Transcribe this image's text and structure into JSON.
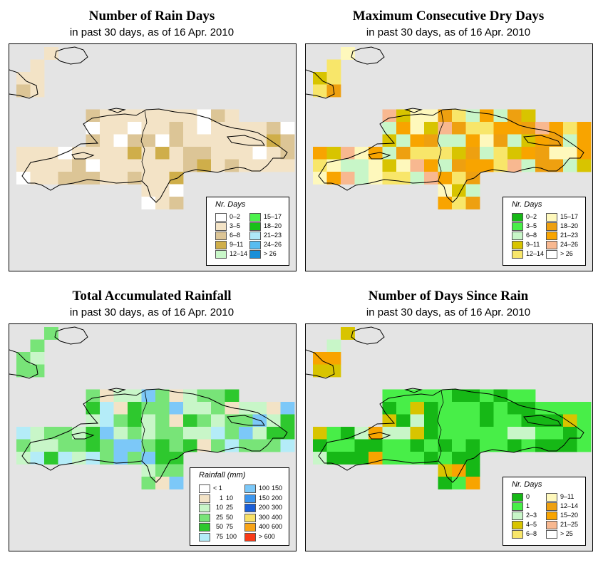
{
  "colors": {
    "background": "#e4e4e4",
    "coast": "#000000"
  },
  "panels": [
    {
      "id": "rain-days",
      "title": "Number of Rain Days",
      "subtitle": "in past 30 days, as of  16 Apr. 2010",
      "legend": {
        "title": "Nr. Days",
        "items": [
          {
            "label": "0–2",
            "color": "#ffffff"
          },
          {
            "label": "3–5",
            "color": "#f3e3c6"
          },
          {
            "label": "6–8",
            "color": "#dcc596"
          },
          {
            "label": "9–11",
            "color": "#cfae4a"
          },
          {
            "label": "12–14",
            "color": "#c9f7c9"
          },
          {
            "label": "15–17",
            "color": "#4cf24c"
          },
          {
            "label": "18–20",
            "color": "#18c018"
          },
          {
            "label": "21–23",
            "color": "#aee8f8"
          },
          {
            "label": "24–26",
            "color": "#58bcf0"
          },
          {
            "label": "> 26",
            "color": "#1a8fd8"
          }
        ]
      },
      "palette": [
        "#ffffff",
        "#f3e3c6",
        "#dcc596",
        "#cfae4a"
      ]
    },
    {
      "id": "dry-days",
      "title": "Maximum Consecutive Dry Days",
      "subtitle": "in past 30 days, as of  16 Apr. 2010",
      "legend": {
        "title": "Nr. Days",
        "items": [
          {
            "label": "0–2",
            "color": "#16b816"
          },
          {
            "label": "3–5",
            "color": "#48ee48"
          },
          {
            "label": "6–8",
            "color": "#c8f6c8"
          },
          {
            "label": "9–11",
            "color": "#d8c400"
          },
          {
            "label": "12–14",
            "color": "#f8e66a"
          },
          {
            "label": "15–17",
            "color": "#fef8bc"
          },
          {
            "label": "18–20",
            "color": "#eea010"
          },
          {
            "label": "21–23",
            "color": "#f8a400"
          },
          {
            "label": "24–26",
            "color": "#f8b890"
          },
          {
            "label": "> 26",
            "color": "#ffffff"
          }
        ]
      },
      "palette": [
        "#fef8bc",
        "#f8e66a",
        "#eea010",
        "#f8a400",
        "#f8b890",
        "#d8c400",
        "#c8f6c8"
      ]
    },
    {
      "id": "rainfall",
      "title": "Total Accumulated Rainfall",
      "subtitle": "in past 30 days, as of  16 Apr. 2010",
      "legend": {
        "title": "Rainfall (mm)",
        "items": [
          {
            "lo": "< 1",
            "hi": "",
            "color": "#ffffff"
          },
          {
            "lo": "1",
            "hi": "10",
            "color": "#f3e3c6"
          },
          {
            "lo": "10",
            "hi": "25",
            "color": "#c8f6c8"
          },
          {
            "lo": "25",
            "hi": "50",
            "color": "#78e478"
          },
          {
            "lo": "50",
            "hi": "75",
            "color": "#2ec82e"
          },
          {
            "lo": "75",
            "hi": "100",
            "color": "#b4ecf8"
          },
          {
            "lo": "100",
            "hi": "150",
            "color": "#7cc8f8"
          },
          {
            "lo": "150",
            "hi": "200",
            "color": "#3c96ee"
          },
          {
            "lo": "200",
            "hi": "300",
            "color": "#1a5ed8"
          },
          {
            "lo": "300",
            "hi": "400",
            "color": "#f8e066"
          },
          {
            "lo": "400",
            "hi": "600",
            "color": "#f8a418"
          },
          {
            "lo": "> 600",
            "hi": "",
            "color": "#f83a18"
          }
        ]
      },
      "palette": [
        "#c8f6c8",
        "#78e478",
        "#2ec82e",
        "#b4ecf8",
        "#7cc8f8",
        "#f3e3c6"
      ]
    },
    {
      "id": "since-rain",
      "title": "Number of Days Since Rain",
      "subtitle": "in past 30 days, as of  16 Apr. 2010",
      "legend": {
        "title": "Nr. Days",
        "items": [
          {
            "label": "0",
            "color": "#16b816"
          },
          {
            "label": "1",
            "color": "#48ee48"
          },
          {
            "label": "2–3",
            "color": "#c8f6c8"
          },
          {
            "label": "4–5",
            "color": "#d8c400"
          },
          {
            "label": "6–8",
            "color": "#f8e66a"
          },
          {
            "label": "9–11",
            "color": "#fef8bc"
          },
          {
            "label": "12–14",
            "color": "#eea010"
          },
          {
            "label": "15–20",
            "color": "#f8a400"
          },
          {
            "label": "21–25",
            "color": "#f8b890"
          },
          {
            "label": "> 25",
            "color": "#ffffff"
          }
        ]
      },
      "palette": [
        "#48ee48",
        "#16b816",
        "#c8f6c8",
        "#d8c400",
        "#f8a400"
      ]
    }
  ]
}
